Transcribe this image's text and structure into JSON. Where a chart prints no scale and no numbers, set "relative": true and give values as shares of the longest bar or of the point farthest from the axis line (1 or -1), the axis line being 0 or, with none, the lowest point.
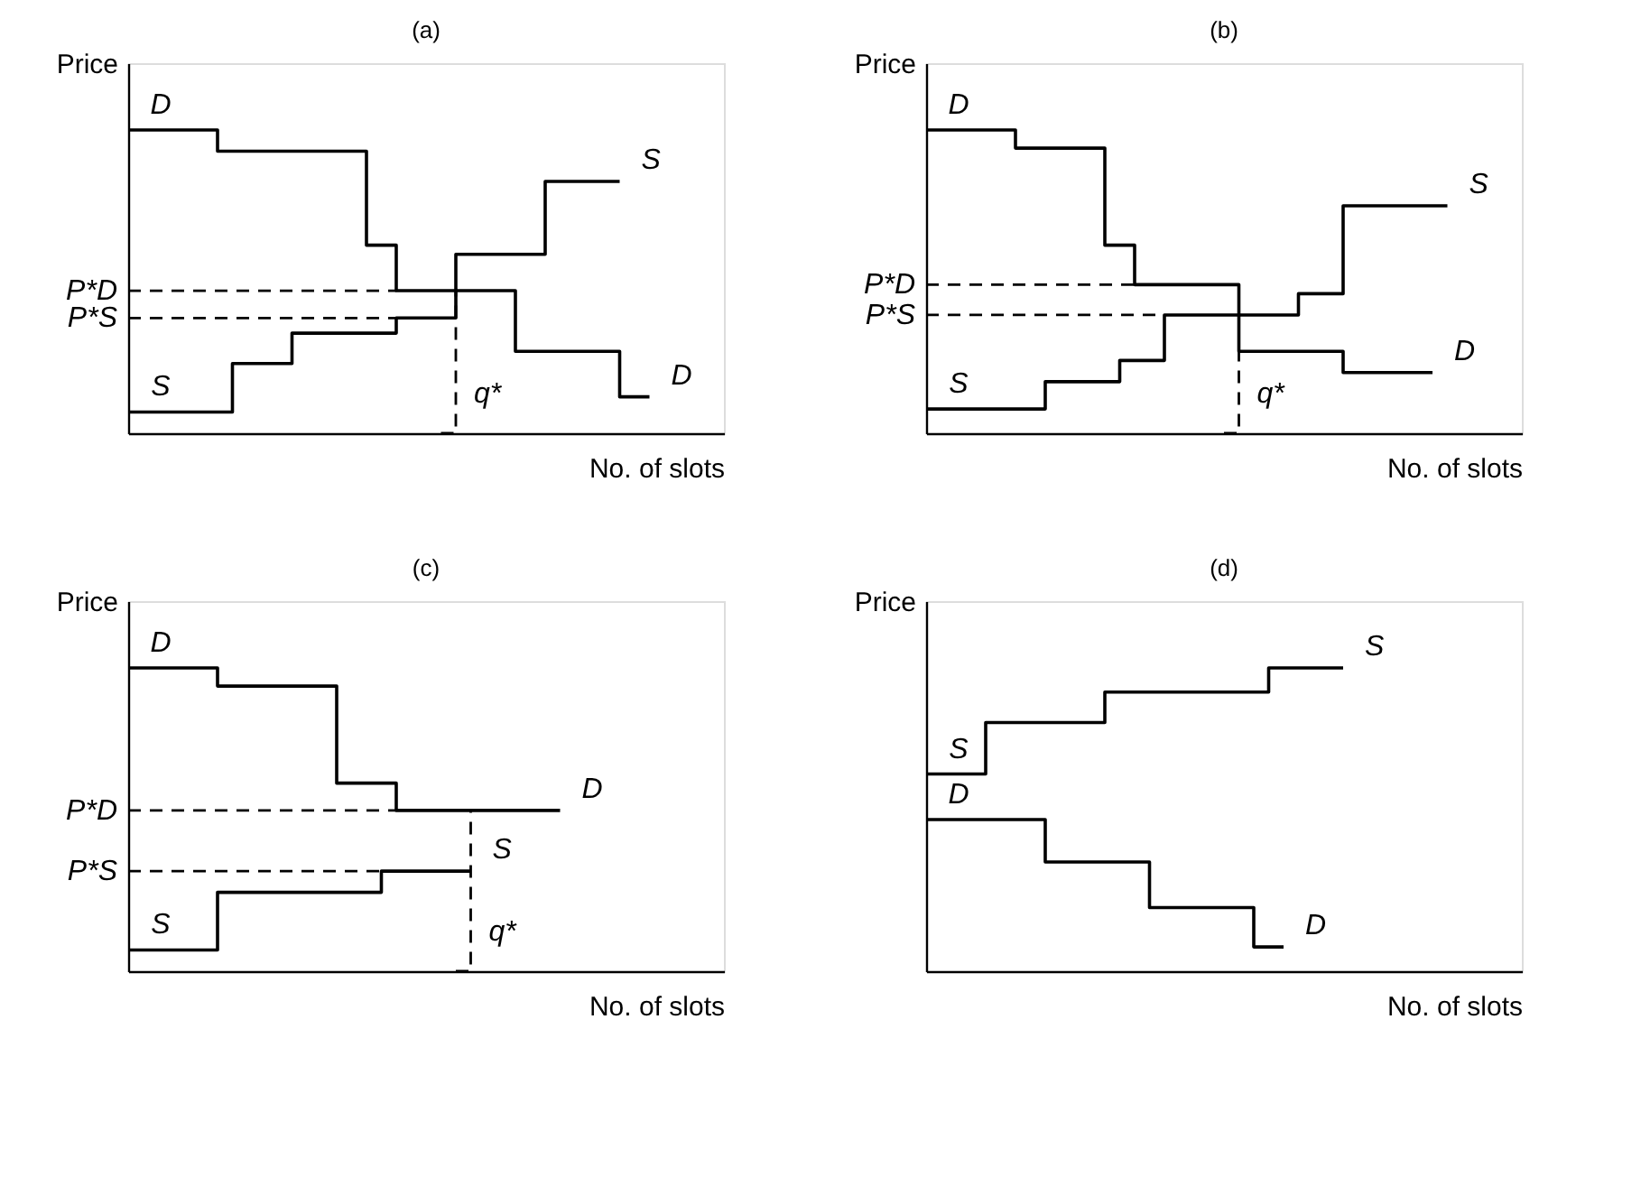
{
  "chart_data": [
    {
      "type": "step",
      "title": "(a)",
      "xlabel": "No. of slots",
      "ylabel": "Price",
      "relative": true,
      "tick_labels": false,
      "categories": [
        null,
        null,
        null,
        null,
        null,
        null,
        null,
        null,
        null,
        null,
        null,
        null,
        null,
        null,
        null,
        null,
        null,
        null,
        null,
        null,
        null,
        null,
        null,
        null,
        null,
        null,
        null,
        null,
        null,
        null,
        null,
        null,
        null,
        null,
        null,
        null,
        null,
        null,
        null,
        null,
        null
      ],
      "series": [
        {
          "name": "D",
          "color": "#000000",
          "values": [
            1,
            1,
            1,
            1,
            1,
            1,
            0.93,
            0.93,
            0.93,
            0.93,
            0.93,
            0.93,
            0.93,
            0.93,
            0.93,
            0.93,
            0.62,
            0.62,
            0.47,
            0.47,
            0.47,
            0.47,
            0.47,
            0.47,
            0.47,
            0.47,
            0.27,
            0.27,
            0.27,
            0.27,
            0.27,
            0.27,
            0.27,
            0.12,
            0.12,
            0.12,
            null,
            null,
            null,
            null,
            null
          ]
        },
        {
          "name": "S",
          "color": "#000000",
          "values": [
            0.07,
            0.07,
            0.07,
            0.07,
            0.07,
            0.07,
            0.07,
            0.23,
            0.23,
            0.23,
            0.23,
            0.33,
            0.33,
            0.33,
            0.33,
            0.33,
            0.33,
            0.33,
            0.38,
            0.38,
            0.38,
            0.38,
            0.59,
            0.59,
            0.59,
            0.59,
            0.59,
            0.59,
            0.83,
            0.83,
            0.83,
            0.83,
            0.83,
            0.83,
            null,
            null,
            null,
            null,
            null,
            null,
            null
          ]
        },
        {
          "name": "P*D",
          "line_style": "dashed",
          "color": "#000000",
          "values": [
            0.47,
            0.47,
            0.47,
            0.47,
            0.47,
            0.47,
            0.47,
            0.47,
            0.47,
            0.47,
            0.47,
            0.47,
            0.47,
            0.47,
            0.47,
            0.47,
            0.47,
            0.47,
            0.47,
            null,
            null,
            null,
            null,
            null,
            null,
            null,
            null,
            null,
            null,
            null,
            null,
            null,
            null,
            null,
            null,
            null,
            null,
            null,
            null,
            null,
            null
          ]
        },
        {
          "name": "P*S",
          "line_style": "dashed",
          "color": "#000000",
          "values": [
            0.38,
            0.38,
            0.38,
            0.38,
            0.38,
            0.38,
            0.38,
            0.38,
            0.38,
            0.38,
            0.38,
            0.38,
            0.38,
            0.38,
            0.38,
            0.38,
            0.38,
            0.38,
            0.38,
            null,
            null,
            null,
            null,
            null,
            null,
            null,
            null,
            null,
            null,
            null,
            null,
            null,
            null,
            null,
            null,
            null,
            null,
            null,
            null,
            null,
            null
          ]
        },
        {
          "name": "q*",
          "line_style": "dashed",
          "color": "#000000",
          "values": [
            null,
            null,
            null,
            null,
            null,
            null,
            null,
            null,
            null,
            null,
            null,
            null,
            null,
            null,
            null,
            null,
            null,
            null,
            null,
            null,
            null,
            0,
            0.47,
            null,
            null,
            null,
            null,
            null,
            null,
            null,
            null,
            null,
            null,
            null,
            null,
            null,
            null,
            null,
            null,
            null,
            null
          ]
        }
      ]
    },
    {
      "type": "step",
      "title": "(b)",
      "xlabel": "No. of slots",
      "ylabel": "Price",
      "relative": true,
      "tick_labels": false,
      "categories": [
        null,
        null,
        null,
        null,
        null,
        null,
        null,
        null,
        null,
        null,
        null,
        null,
        null,
        null,
        null,
        null,
        null,
        null,
        null,
        null,
        null,
        null,
        null,
        null,
        null,
        null,
        null,
        null,
        null,
        null,
        null,
        null,
        null,
        null,
        null,
        null,
        null,
        null,
        null,
        null,
        null
      ],
      "series": [
        {
          "name": "D",
          "color": "#000000",
          "values": [
            1,
            1,
            1,
            1,
            1,
            1,
            0.94,
            0.94,
            0.94,
            0.94,
            0.94,
            0.94,
            0.62,
            0.62,
            0.49,
            0.49,
            0.49,
            0.49,
            0.49,
            0.49,
            0.49,
            0.27,
            0.27,
            0.27,
            0.27,
            0.27,
            0.27,
            0.27,
            0.2,
            0.2,
            0.2,
            0.2,
            0.2,
            0.2,
            0.2,
            null,
            null,
            null,
            null,
            null,
            null
          ]
        },
        {
          "name": "S",
          "color": "#000000",
          "values": [
            0.08,
            0.08,
            0.08,
            0.08,
            0.08,
            0.08,
            0.08,
            0.08,
            0.17,
            0.17,
            0.17,
            0.17,
            0.17,
            0.24,
            0.24,
            0.24,
            0.39,
            0.39,
            0.39,
            0.39,
            0.39,
            0.39,
            0.39,
            0.39,
            0.39,
            0.46,
            0.46,
            0.46,
            0.75,
            0.75,
            0.75,
            0.75,
            0.75,
            0.75,
            0.75,
            0.75,
            null,
            null,
            null,
            null,
            null
          ]
        },
        {
          "name": "P*D",
          "line_style": "dashed",
          "color": "#000000",
          "values": [
            0.49,
            0.49,
            0.49,
            0.49,
            0.49,
            0.49,
            0.49,
            0.49,
            0.49,
            0.49,
            0.49,
            0.49,
            0.49,
            0.49,
            0.49,
            null,
            null,
            null,
            null,
            null,
            null,
            null,
            null,
            null,
            null,
            null,
            null,
            null,
            null,
            null,
            null,
            null,
            null,
            null,
            null,
            null,
            null,
            null,
            null,
            null,
            null
          ]
        },
        {
          "name": "P*S",
          "line_style": "dashed",
          "color": "#000000",
          "values": [
            0.39,
            0.39,
            0.39,
            0.39,
            0.39,
            0.39,
            0.39,
            0.39,
            0.39,
            0.39,
            0.39,
            0.39,
            0.39,
            0.39,
            0.39,
            0.39,
            0.39,
            null,
            null,
            null,
            null,
            null,
            null,
            null,
            null,
            null,
            null,
            null,
            null,
            null,
            null,
            null,
            null,
            null,
            null,
            null,
            null,
            null,
            null,
            null,
            null
          ]
        },
        {
          "name": "q*",
          "line_style": "dashed",
          "color": "#000000",
          "values": [
            null,
            null,
            null,
            null,
            null,
            null,
            null,
            null,
            null,
            null,
            null,
            null,
            null,
            null,
            null,
            null,
            null,
            null,
            null,
            null,
            0,
            0.27,
            null,
            null,
            null,
            null,
            null,
            null,
            null,
            null,
            null,
            null,
            null,
            null,
            null,
            null,
            null,
            null,
            null,
            null,
            null
          ]
        }
      ]
    },
    {
      "type": "step",
      "title": "(c)",
      "xlabel": "No. of slots",
      "ylabel": "Price",
      "relative": true,
      "tick_labels": false,
      "categories": [
        null,
        null,
        null,
        null,
        null,
        null,
        null,
        null,
        null,
        null,
        null,
        null,
        null,
        null,
        null,
        null,
        null,
        null,
        null,
        null,
        null,
        null,
        null,
        null,
        null,
        null,
        null,
        null,
        null,
        null,
        null,
        null,
        null,
        null,
        null,
        null,
        null,
        null,
        null,
        null,
        null
      ],
      "series": [
        {
          "name": "D",
          "color": "#000000",
          "values": [
            1,
            1,
            1,
            1,
            1,
            1,
            0.94,
            0.94,
            0.94,
            0.94,
            0.94,
            0.94,
            0.94,
            0.94,
            0.62,
            0.62,
            0.62,
            0.62,
            0.53,
            0.53,
            0.53,
            0.53,
            0.53,
            0.53,
            0.53,
            0.53,
            0.53,
            0.53,
            0.53,
            0.53,
            null,
            null,
            null,
            null,
            null,
            null,
            null,
            null,
            null,
            null,
            null
          ]
        },
        {
          "name": "S",
          "color": "#000000",
          "values": [
            0.07,
            0.07,
            0.07,
            0.07,
            0.07,
            0.07,
            0.26,
            0.26,
            0.26,
            0.26,
            0.26,
            0.26,
            0.26,
            0.26,
            0.26,
            0.26,
            0.26,
            0.33,
            0.33,
            0.33,
            0.33,
            0.33,
            0.33,
            0.33,
            null,
            null,
            null,
            null,
            null,
            null,
            null,
            null,
            null,
            null,
            null,
            null,
            null,
            null,
            null,
            null,
            null
          ]
        },
        {
          "name": "P*D",
          "line_style": "dashed",
          "color": "#000000",
          "values": [
            0.53,
            0.53,
            0.53,
            0.53,
            0.53,
            0.53,
            0.53,
            0.53,
            0.53,
            0.53,
            0.53,
            0.53,
            0.53,
            0.53,
            0.53,
            0.53,
            0.53,
            0.53,
            0.53,
            null,
            null,
            null,
            null,
            null,
            null,
            null,
            null,
            null,
            null,
            null,
            null,
            null,
            null,
            null,
            null,
            null,
            null,
            null,
            null,
            null,
            null
          ]
        },
        {
          "name": "P*S",
          "line_style": "dashed",
          "color": "#000000",
          "values": [
            0.33,
            0.33,
            0.33,
            0.33,
            0.33,
            0.33,
            0.33,
            0.33,
            0.33,
            0.33,
            0.33,
            0.33,
            0.33,
            0.33,
            0.33,
            0.33,
            0.33,
            0.33,
            null,
            null,
            null,
            null,
            null,
            null,
            null,
            null,
            null,
            null,
            null,
            null,
            null,
            null,
            null,
            null,
            null,
            null,
            null,
            null,
            null,
            null,
            null
          ]
        },
        {
          "name": "q*",
          "line_style": "dashed",
          "color": "#000000",
          "values": [
            null,
            null,
            null,
            null,
            null,
            null,
            null,
            null,
            null,
            null,
            null,
            null,
            null,
            null,
            null,
            null,
            null,
            null,
            null,
            null,
            null,
            null,
            0,
            0.53,
            null,
            null,
            null,
            null,
            null,
            null,
            null,
            null,
            null,
            null,
            null,
            null,
            null,
            null,
            null,
            null,
            null
          ]
        }
      ]
    },
    {
      "type": "step",
      "title": "(d)",
      "xlabel": "No. of slots",
      "ylabel": "Price",
      "relative": true,
      "tick_labels": false,
      "categories": [
        null,
        null,
        null,
        null,
        null,
        null,
        null,
        null,
        null,
        null,
        null,
        null,
        null,
        null,
        null,
        null,
        null,
        null,
        null,
        null,
        null,
        null,
        null,
        null,
        null,
        null,
        null,
        null,
        null,
        null,
        null,
        null,
        null,
        null,
        null,
        null,
        null,
        null,
        null,
        null,
        null
      ],
      "series": [
        {
          "name": "S",
          "color": "#000000",
          "values": [
            0.65,
            0.65,
            0.65,
            0.65,
            0.82,
            0.82,
            0.82,
            0.82,
            0.82,
            0.82,
            0.82,
            0.82,
            0.92,
            0.92,
            0.92,
            0.92,
            0.92,
            0.92,
            0.92,
            0.92,
            0.92,
            0.92,
            0.92,
            1,
            1,
            1,
            1,
            1,
            1,
            null,
            null,
            null,
            null,
            null,
            null,
            null,
            null,
            null,
            null,
            null,
            null
          ]
        },
        {
          "name": "D",
          "color": "#000000",
          "values": [
            0.5,
            0.5,
            0.5,
            0.5,
            0.5,
            0.5,
            0.5,
            0.5,
            0.36,
            0.36,
            0.36,
            0.36,
            0.36,
            0.36,
            0.36,
            0.21,
            0.21,
            0.21,
            0.21,
            0.21,
            0.21,
            0.21,
            0.08,
            0.08,
            0.08,
            null,
            null,
            null,
            null,
            null,
            null,
            null,
            null,
            null,
            null,
            null,
            null,
            null,
            null,
            null,
            null
          ]
        }
      ]
    }
  ]
}
